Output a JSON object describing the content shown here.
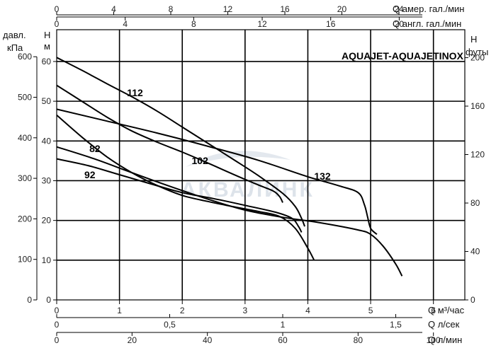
{
  "chart_data": {
    "type": "line",
    "title": "AQUAJET-AQUAJETINOX",
    "watermark": "АКВАЛИНК",
    "axes": {
      "main_x": {
        "unit": "Q  м³/час",
        "range": [
          0,
          6.5
        ],
        "ticks": [
          "0",
          "1",
          "2",
          "3",
          "4",
          "5",
          "6"
        ],
        "tick_values": [
          0,
          1,
          2,
          3,
          4,
          5,
          6
        ]
      },
      "main_y": {
        "unit_top": "H",
        "unit_bottom": "м",
        "range": [
          0,
          68
        ],
        "ticks": [
          "0",
          "10",
          "20",
          "30",
          "40",
          "50",
          "60"
        ],
        "tick_values": [
          0,
          10,
          20,
          30,
          40,
          50,
          60
        ]
      },
      "top_x_us": {
        "unit": "Q  амер. гал./мин",
        "ticks": [
          "0",
          "4",
          "8",
          "12",
          "16",
          "20",
          "24"
        ],
        "tick_values_m3h": [
          0,
          0.908,
          1.817,
          2.725,
          3.634,
          4.542,
          5.451
        ]
      },
      "top_x_uk": {
        "unit": "Q  англ. гал./мин",
        "ticks": [
          "0",
          "4",
          "8",
          "12",
          "16",
          "20"
        ],
        "tick_values_m3h": [
          0,
          1.091,
          2.182,
          3.273,
          4.364,
          5.455
        ]
      },
      "bottom_x_ls": {
        "unit": "Q  л/сек",
        "ticks": [
          "0",
          "0,5",
          "1",
          "1,5"
        ],
        "tick_values_m3h": [
          0,
          1.8,
          3.6,
          5.4
        ]
      },
      "bottom_x_lmin": {
        "unit": "Q  л/мин",
        "ticks": [
          "0",
          "20",
          "40",
          "60",
          "80",
          "100"
        ],
        "tick_values_m3h": [
          0,
          1.2,
          2.4,
          3.6,
          4.8,
          6.0
        ]
      },
      "left_kpa": {
        "unit_top": "давл.",
        "unit_bottom": "кПа",
        "ticks": [
          "0",
          "100",
          "200",
          "300",
          "400",
          "500",
          "600"
        ],
        "tick_values_m": [
          0,
          10.2,
          20.4,
          30.6,
          40.8,
          51.0,
          61.2
        ]
      },
      "right_ft": {
        "unit_top": "H",
        "unit_bottom": "футы",
        "ticks": [
          "0",
          "40",
          "80",
          "120",
          "160",
          "200"
        ],
        "tick_values_m": [
          0,
          12.19,
          24.38,
          36.58,
          48.77,
          60.96
        ]
      }
    },
    "grid": true,
    "series": [
      {
        "name": "82",
        "label_at": [
          0.52,
          37.2
        ],
        "points": [
          [
            0,
            46.5
          ],
          [
            0.4,
            41
          ],
          [
            0.8,
            36
          ],
          [
            1.2,
            32
          ],
          [
            1.6,
            28.8
          ],
          [
            2.0,
            26.3
          ],
          [
            2.4,
            24.8
          ],
          [
            2.8,
            23.5
          ],
          [
            3.2,
            22.3
          ],
          [
            3.55,
            21
          ],
          [
            3.8,
            18
          ],
          [
            4.0,
            13
          ],
          [
            4.1,
            10
          ]
        ]
      },
      {
        "name": "92",
        "label_at": [
          0.44,
          30.6
        ],
        "points": [
          [
            0,
            35.5
          ],
          [
            0.5,
            33.8
          ],
          [
            1.0,
            31.5
          ],
          [
            1.5,
            29.2
          ],
          [
            2.0,
            27
          ],
          [
            2.5,
            25.5
          ],
          [
            3.0,
            23.8
          ],
          [
            3.5,
            22
          ],
          [
            3.75,
            20.5
          ],
          [
            3.85,
            18.5
          ],
          [
            3.9,
            17
          ]
        ]
      },
      {
        "name": "102",
        "label_at": [
          2.15,
          34.2
        ],
        "points": [
          [
            0,
            54
          ],
          [
            0.4,
            50
          ],
          [
            0.8,
            46
          ],
          [
            1.2,
            42.5
          ],
          [
            1.6,
            39.7
          ],
          [
            2.0,
            37.2
          ],
          [
            2.4,
            34.5
          ],
          [
            2.8,
            31.7
          ],
          [
            3.2,
            29
          ],
          [
            3.45,
            27.4
          ],
          [
            3.55,
            26
          ],
          [
            3.6,
            24.5
          ]
        ]
      },
      {
        "name": "112",
        "label_at": [
          1.12,
          51.3
        ],
        "points": [
          [
            0,
            61
          ],
          [
            0.4,
            57.8
          ],
          [
            0.8,
            54.4
          ],
          [
            1.2,
            51.1
          ],
          [
            1.6,
            47.5
          ],
          [
            2.0,
            43.5
          ],
          [
            2.4,
            39.5
          ],
          [
            2.8,
            35.5
          ],
          [
            3.2,
            31.4
          ],
          [
            3.6,
            26.8
          ],
          [
            3.8,
            23.5
          ],
          [
            3.9,
            20.5
          ],
          [
            3.95,
            18.5
          ]
        ]
      },
      {
        "name": "132",
        "label_at": [
          4.1,
          30.3
        ],
        "points": [
          [
            0,
            48
          ],
          [
            0.8,
            45
          ],
          [
            1.6,
            42
          ],
          [
            2.4,
            38.7
          ],
          [
            3.2,
            35.2
          ],
          [
            4.0,
            31
          ],
          [
            4.5,
            28.7
          ],
          [
            4.8,
            27
          ],
          [
            4.9,
            24
          ],
          [
            4.95,
            21
          ],
          [
            5.0,
            18
          ],
          [
            5.1,
            16.5
          ]
        ]
      },
      {
        "name": "",
        "points": [
          [
            0,
            38.5
          ],
          [
            0.6,
            35.5
          ],
          [
            1.2,
            32
          ],
          [
            1.8,
            28.6
          ],
          [
            2.4,
            25.4
          ],
          [
            3.0,
            22.6
          ],
          [
            3.6,
            20.8
          ],
          [
            4.2,
            19.4
          ],
          [
            4.8,
            17.6
          ],
          [
            5.0,
            16.5
          ],
          [
            5.2,
            13.5
          ],
          [
            5.4,
            9
          ],
          [
            5.5,
            6
          ]
        ]
      }
    ]
  }
}
